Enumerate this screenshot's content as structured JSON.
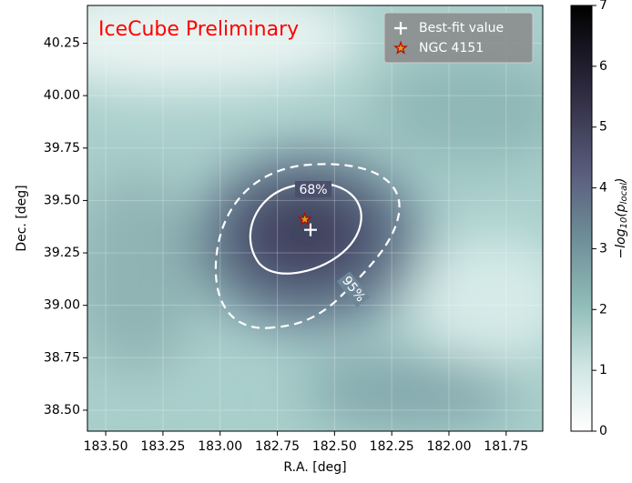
{
  "chart_data": {
    "type": "heatmap",
    "title": "IceCube Preliminary",
    "title_color": "#ff0000",
    "x_label": "R.A. [deg]",
    "y_label": "Dec. [deg]",
    "xlim": [
      183.58,
      181.59
    ],
    "xticks": [
      {
        "value": 183.5,
        "label": "183.50"
      },
      183.25,
      {
        "value": 183.0,
        "label": "183.00"
      },
      182.75,
      {
        "value": 182.5,
        "label": "182.50"
      },
      182.25,
      {
        "value": 182.0,
        "label": "182.00"
      },
      181.75
    ],
    "ylim": [
      38.4,
      40.43
    ],
    "yticks": [
      {
        "value": 38.5,
        "label": "38.50"
      },
      38.75,
      {
        "value": 39.0,
        "label": "39.00"
      },
      39.25,
      {
        "value": 39.5,
        "label": "39.50"
      },
      39.75,
      {
        "value": 40.0,
        "label": "40.00"
      },
      40.25
    ],
    "grid": true,
    "legend": "upper right",
    "series": [
      {
        "name": "Best-fit value",
        "marker": "plus",
        "color": "#ffffff",
        "x": [
          182.605
        ],
        "y": [
          39.36
        ]
      },
      {
        "name": "NGC 4151",
        "marker": "star",
        "color": "#d4a017",
        "x": [
          182.63
        ],
        "y": [
          39.41
        ]
      }
    ],
    "contour_labels": [
      "68%",
      "95%"
    ],
    "colorbar": {
      "label_parts": [
        "−log",
        "10",
        "(p",
        "local",
        ")"
      ],
      "lim": [
        0,
        7
      ],
      "ticks": [
        0,
        1,
        2,
        3,
        4,
        5,
        6,
        7
      ]
    }
  }
}
